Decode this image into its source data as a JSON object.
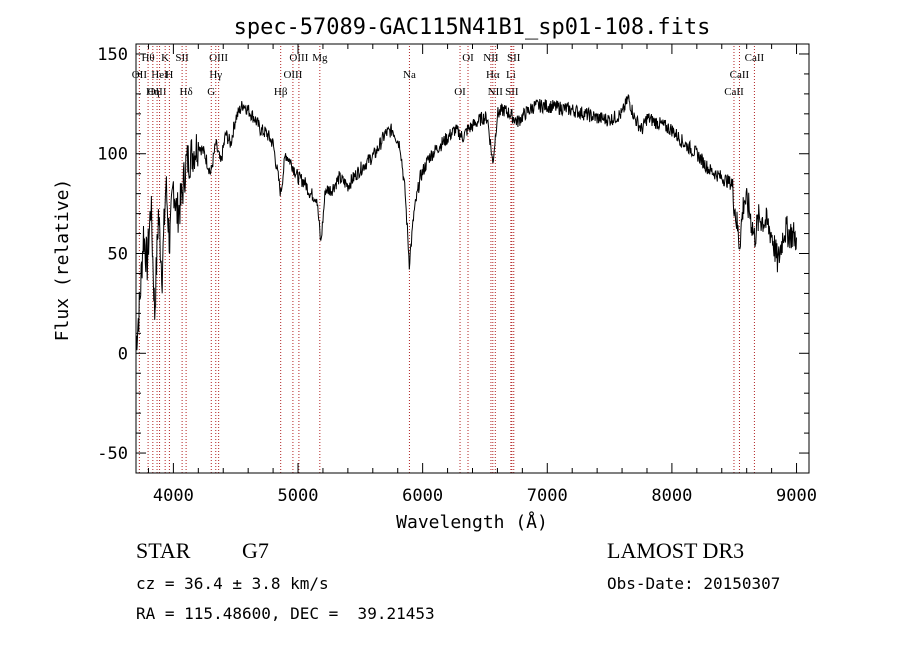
{
  "chart_data": {
    "type": "line",
    "title": "spec-57089-GAC115N41B1_sp01-108.fits",
    "xlabel": "Wavelength (Å)",
    "ylabel": "Flux (relative)",
    "xlim": [
      3700,
      9100
    ],
    "ylim": [
      -60,
      155
    ],
    "xticks": [
      4000,
      5000,
      6000,
      7000,
      8000,
      9000
    ],
    "yticks": [
      -50,
      0,
      50,
      100,
      150
    ],
    "grid": false,
    "line_color": "#000000",
    "marker_color": "#b22222",
    "series": [
      {
        "x": [
          3700,
          3730,
          3760,
          3790,
          3820,
          3850,
          3880,
          3910,
          3940,
          3970,
          4000,
          4030,
          4060,
          4100,
          4150,
          4200,
          4250,
          4300,
          4340,
          4380,
          4420,
          4460,
          4500,
          4560,
          4600,
          4650,
          4700,
          4750,
          4800,
          4861,
          4900,
          4950,
          5000,
          5050,
          5100,
          5150,
          5183,
          5220,
          5270,
          5330,
          5400,
          5470,
          5540,
          5620,
          5700,
          5760,
          5820,
          5860,
          5893,
          5930,
          5980,
          6050,
          6120,
          6200,
          6260,
          6300,
          6320,
          6360,
          6420,
          6480,
          6520,
          6563,
          6600,
          6650,
          6700,
          6760,
          6820,
          6900,
          7000,
          7100,
          7200,
          7300,
          7400,
          7500,
          7600,
          7650,
          7700,
          7760,
          7800,
          7900,
          8000,
          8100,
          8200,
          8300,
          8400,
          8480,
          8542,
          8580,
          8620,
          8662,
          8700,
          8750,
          8800,
          8850,
          8900,
          8950,
          9000
        ],
        "y": [
          5,
          25,
          60,
          45,
          75,
          20,
          70,
          40,
          85,
          55,
          85,
          70,
          75,
          95,
          100,
          105,
          100,
          90,
          105,
          95,
          110,
          105,
          118,
          125,
          122,
          118,
          112,
          110,
          105,
          80,
          100,
          95,
          88,
          86,
          80,
          78,
          55,
          82,
          82,
          88,
          84,
          90,
          95,
          100,
          110,
          112,
          104,
          80,
          45,
          70,
          88,
          98,
          103,
          108,
          112,
          110,
          108,
          112,
          115,
          118,
          118,
          95,
          120,
          122,
          120,
          116,
          120,
          124,
          124,
          123,
          122,
          120,
          118,
          117,
          120,
          128,
          118,
          112,
          118,
          115,
          112,
          105,
          100,
          92,
          88,
          85,
          55,
          78,
          72,
          58,
          68,
          66,
          60,
          45,
          62,
          60,
          58
        ]
      }
    ],
    "lines": [
      {
        "label": "Hθ",
        "x": 3797
      },
      {
        "label": "OII",
        "x": 3727
      },
      {
        "label": "OIII",
        "x": 3869
      },
      {
        "label": "K",
        "x": 3934
      },
      {
        "label": "HeI",
        "x": 3889
      },
      {
        "label": "Hη",
        "x": 3835
      },
      {
        "label": "SII",
        "x": 4070
      },
      {
        "label": "H",
        "x": 3968
      },
      {
        "label": "Hδ",
        "x": 4102
      },
      {
        "label": "OIII",
        "x": 4363
      },
      {
        "label": "Hγ",
        "x": 4340
      },
      {
        "label": "G",
        "x": 4304
      },
      {
        "label": "OIII",
        "x": 5007
      },
      {
        "label": "OIII",
        "x": 4959
      },
      {
        "label": "Hβ",
        "x": 4861
      },
      {
        "label": "Mg",
        "x": 5175
      },
      {
        "label": "Na",
        "x": 5894
      },
      {
        "label": "OI",
        "x": 6300
      },
      {
        "label": "OI",
        "x": 6364
      },
      {
        "label": "Hα",
        "x": 6563
      },
      {
        "label": "SII",
        "x": 6716
      },
      {
        "label": "NII",
        "x": 6548
      },
      {
        "label": "Li",
        "x": 6708
      },
      {
        "label": "NII",
        "x": 6583
      },
      {
        "label": "SII",
        "x": 6731
      },
      {
        "label": "CaII",
        "x": 8542
      },
      {
        "label": "CaII",
        "x": 8498
      },
      {
        "label": "CaII",
        "x": 8662
      }
    ]
  },
  "info": {
    "class": "STAR",
    "subclass": "G7",
    "survey": "LAMOST DR3",
    "cz": "cz = 36.4 ± 3.8 km/s",
    "obs_date": "Obs-Date: 20150307",
    "radec": "RA = 115.48600, DEC =  39.21453"
  }
}
